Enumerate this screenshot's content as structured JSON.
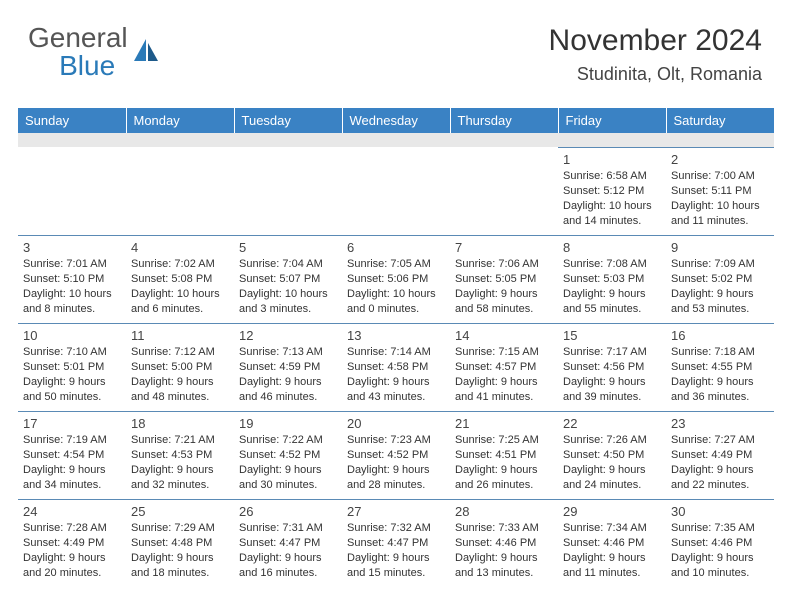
{
  "logo": {
    "text1": "General",
    "text2": "Blue"
  },
  "colors": {
    "headerBg": "#3a82c4",
    "logoBlue": "#2a7ab8",
    "border": "#5a8ab5"
  },
  "title": "November 2024",
  "location": "Studinita, Olt, Romania",
  "weekdays": [
    "Sunday",
    "Monday",
    "Tuesday",
    "Wednesday",
    "Thursday",
    "Friday",
    "Saturday"
  ],
  "startOffset": 5,
  "days": [
    {
      "n": "1",
      "sr": "Sunrise: 6:58 AM",
      "ss": "Sunset: 5:12 PM",
      "dl": "Daylight: 10 hours and 14 minutes."
    },
    {
      "n": "2",
      "sr": "Sunrise: 7:00 AM",
      "ss": "Sunset: 5:11 PM",
      "dl": "Daylight: 10 hours and 11 minutes."
    },
    {
      "n": "3",
      "sr": "Sunrise: 7:01 AM",
      "ss": "Sunset: 5:10 PM",
      "dl": "Daylight: 10 hours and 8 minutes."
    },
    {
      "n": "4",
      "sr": "Sunrise: 7:02 AM",
      "ss": "Sunset: 5:08 PM",
      "dl": "Daylight: 10 hours and 6 minutes."
    },
    {
      "n": "5",
      "sr": "Sunrise: 7:04 AM",
      "ss": "Sunset: 5:07 PM",
      "dl": "Daylight: 10 hours and 3 minutes."
    },
    {
      "n": "6",
      "sr": "Sunrise: 7:05 AM",
      "ss": "Sunset: 5:06 PM",
      "dl": "Daylight: 10 hours and 0 minutes."
    },
    {
      "n": "7",
      "sr": "Sunrise: 7:06 AM",
      "ss": "Sunset: 5:05 PM",
      "dl": "Daylight: 9 hours and 58 minutes."
    },
    {
      "n": "8",
      "sr": "Sunrise: 7:08 AM",
      "ss": "Sunset: 5:03 PM",
      "dl": "Daylight: 9 hours and 55 minutes."
    },
    {
      "n": "9",
      "sr": "Sunrise: 7:09 AM",
      "ss": "Sunset: 5:02 PM",
      "dl": "Daylight: 9 hours and 53 minutes."
    },
    {
      "n": "10",
      "sr": "Sunrise: 7:10 AM",
      "ss": "Sunset: 5:01 PM",
      "dl": "Daylight: 9 hours and 50 minutes."
    },
    {
      "n": "11",
      "sr": "Sunrise: 7:12 AM",
      "ss": "Sunset: 5:00 PM",
      "dl": "Daylight: 9 hours and 48 minutes."
    },
    {
      "n": "12",
      "sr": "Sunrise: 7:13 AM",
      "ss": "Sunset: 4:59 PM",
      "dl": "Daylight: 9 hours and 46 minutes."
    },
    {
      "n": "13",
      "sr": "Sunrise: 7:14 AM",
      "ss": "Sunset: 4:58 PM",
      "dl": "Daylight: 9 hours and 43 minutes."
    },
    {
      "n": "14",
      "sr": "Sunrise: 7:15 AM",
      "ss": "Sunset: 4:57 PM",
      "dl": "Daylight: 9 hours and 41 minutes."
    },
    {
      "n": "15",
      "sr": "Sunrise: 7:17 AM",
      "ss": "Sunset: 4:56 PM",
      "dl": "Daylight: 9 hours and 39 minutes."
    },
    {
      "n": "16",
      "sr": "Sunrise: 7:18 AM",
      "ss": "Sunset: 4:55 PM",
      "dl": "Daylight: 9 hours and 36 minutes."
    },
    {
      "n": "17",
      "sr": "Sunrise: 7:19 AM",
      "ss": "Sunset: 4:54 PM",
      "dl": "Daylight: 9 hours and 34 minutes."
    },
    {
      "n": "18",
      "sr": "Sunrise: 7:21 AM",
      "ss": "Sunset: 4:53 PM",
      "dl": "Daylight: 9 hours and 32 minutes."
    },
    {
      "n": "19",
      "sr": "Sunrise: 7:22 AM",
      "ss": "Sunset: 4:52 PM",
      "dl": "Daylight: 9 hours and 30 minutes."
    },
    {
      "n": "20",
      "sr": "Sunrise: 7:23 AM",
      "ss": "Sunset: 4:52 PM",
      "dl": "Daylight: 9 hours and 28 minutes."
    },
    {
      "n": "21",
      "sr": "Sunrise: 7:25 AM",
      "ss": "Sunset: 4:51 PM",
      "dl": "Daylight: 9 hours and 26 minutes."
    },
    {
      "n": "22",
      "sr": "Sunrise: 7:26 AM",
      "ss": "Sunset: 4:50 PM",
      "dl": "Daylight: 9 hours and 24 minutes."
    },
    {
      "n": "23",
      "sr": "Sunrise: 7:27 AM",
      "ss": "Sunset: 4:49 PM",
      "dl": "Daylight: 9 hours and 22 minutes."
    },
    {
      "n": "24",
      "sr": "Sunrise: 7:28 AM",
      "ss": "Sunset: 4:49 PM",
      "dl": "Daylight: 9 hours and 20 minutes."
    },
    {
      "n": "25",
      "sr": "Sunrise: 7:29 AM",
      "ss": "Sunset: 4:48 PM",
      "dl": "Daylight: 9 hours and 18 minutes."
    },
    {
      "n": "26",
      "sr": "Sunrise: 7:31 AM",
      "ss": "Sunset: 4:47 PM",
      "dl": "Daylight: 9 hours and 16 minutes."
    },
    {
      "n": "27",
      "sr": "Sunrise: 7:32 AM",
      "ss": "Sunset: 4:47 PM",
      "dl": "Daylight: 9 hours and 15 minutes."
    },
    {
      "n": "28",
      "sr": "Sunrise: 7:33 AM",
      "ss": "Sunset: 4:46 PM",
      "dl": "Daylight: 9 hours and 13 minutes."
    },
    {
      "n": "29",
      "sr": "Sunrise: 7:34 AM",
      "ss": "Sunset: 4:46 PM",
      "dl": "Daylight: 9 hours and 11 minutes."
    },
    {
      "n": "30",
      "sr": "Sunrise: 7:35 AM",
      "ss": "Sunset: 4:46 PM",
      "dl": "Daylight: 9 hours and 10 minutes."
    }
  ]
}
